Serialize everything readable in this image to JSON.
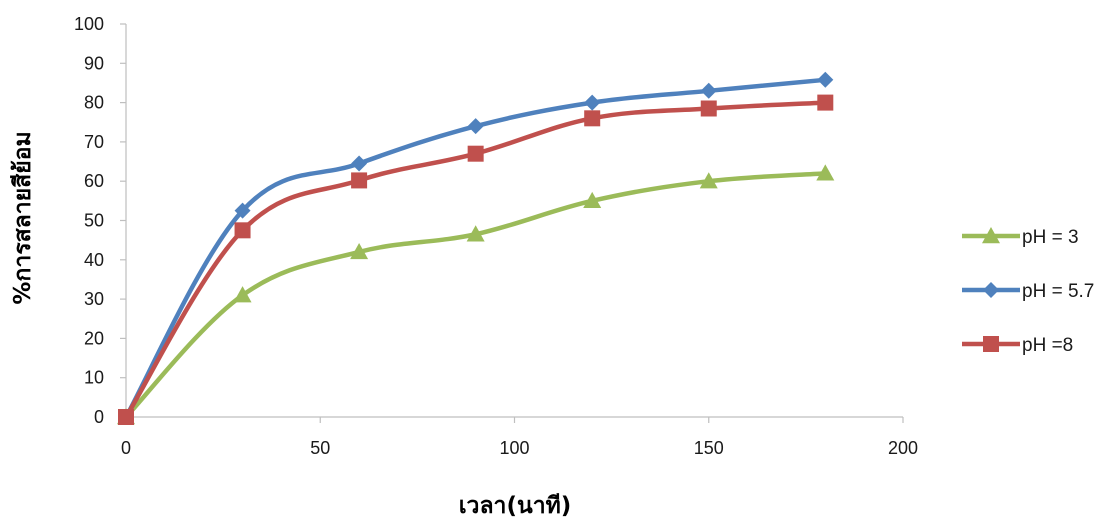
{
  "chart_data": {
    "type": "line",
    "title": "",
    "xlabel": "เวลา(นาที)",
    "ylabel": "%การสลายสีย้อม",
    "xlim": [
      0,
      200
    ],
    "ylim": [
      0,
      100
    ],
    "x_ticks": [
      0,
      50,
      100,
      150,
      200
    ],
    "y_ticks": [
      0,
      10,
      20,
      30,
      40,
      50,
      60,
      70,
      80,
      90,
      100
    ],
    "grid": false,
    "smooth": true,
    "legend_position": "right",
    "series": [
      {
        "name": "pH = 3",
        "color": "#9BBB59",
        "marker": "triangle",
        "x": [
          0,
          30,
          60,
          90,
          120,
          150,
          180
        ],
        "y": [
          0,
          31,
          42,
          46.5,
          55,
          60,
          62
        ]
      },
      {
        "name": "pH = 5.7",
        "color": "#4F81BD",
        "marker": "diamond",
        "x": [
          0,
          30,
          60,
          90,
          120,
          150,
          180
        ],
        "y": [
          0,
          52.5,
          64.5,
          74,
          80,
          83,
          85.8
        ]
      },
      {
        "name": "pH =8",
        "color": "#C0504D",
        "marker": "square",
        "x": [
          0,
          30,
          60,
          90,
          120,
          150,
          180
        ],
        "y": [
          0,
          47.5,
          60.2,
          67,
          76,
          78.5,
          80
        ]
      }
    ]
  }
}
